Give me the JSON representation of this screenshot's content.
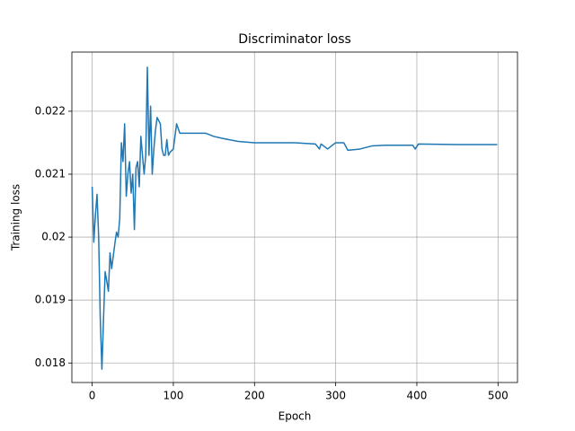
{
  "chart_data": {
    "type": "line",
    "title": "Discriminator loss",
    "x_label": "Epoch",
    "y_label": "Training loss",
    "color": "#1f77b4",
    "grid": true,
    "xlim": [
      -25,
      524
    ],
    "ylim": [
      0.01769,
      0.02294
    ],
    "xticks": [
      0,
      100,
      200,
      300,
      400,
      500
    ],
    "yticks": [
      0.018,
      0.019,
      0.02,
      0.021,
      0.022
    ],
    "x": [
      0,
      2,
      4,
      6,
      8,
      10,
      12,
      14,
      16,
      18,
      20,
      22,
      24,
      26,
      28,
      30,
      32,
      34,
      36,
      38,
      40,
      42,
      44,
      46,
      48,
      50,
      52,
      54,
      56,
      58,
      60,
      62,
      64,
      66,
      68,
      70,
      72,
      74,
      76,
      78,
      80,
      82,
      84,
      86,
      88,
      90,
      92,
      94,
      96,
      100,
      104,
      108,
      120,
      140,
      150,
      160,
      180,
      200,
      220,
      250,
      275,
      280,
      282,
      290,
      300,
      310,
      315,
      330,
      345,
      360,
      395,
      398,
      402,
      450,
      499
    ],
    "values": [
      0.0208,
      0.01992,
      0.02035,
      0.02068,
      0.02,
      0.0187,
      0.0179,
      0.0187,
      0.01945,
      0.0193,
      0.01914,
      0.01975,
      0.0195,
      0.0197,
      0.0199,
      0.02008,
      0.02,
      0.0203,
      0.0215,
      0.0212,
      0.0218,
      0.02065,
      0.021,
      0.0212,
      0.0207,
      0.021,
      0.02012,
      0.0211,
      0.0212,
      0.0208,
      0.0216,
      0.0213,
      0.021,
      0.0213,
      0.0227,
      0.0213,
      0.02208,
      0.021,
      0.0214,
      0.0217,
      0.0219,
      0.02185,
      0.0218,
      0.0214,
      0.0213,
      0.0213,
      0.02155,
      0.0213,
      0.02135,
      0.0214,
      0.0218,
      0.02165,
      0.02165,
      0.02165,
      0.0216,
      0.02157,
      0.02152,
      0.0215,
      0.0215,
      0.0215,
      0.02148,
      0.0214,
      0.02148,
      0.0214,
      0.0215,
      0.0215,
      0.02138,
      0.0214,
      0.02145,
      0.02146,
      0.02146,
      0.0214,
      0.02148,
      0.02147,
      0.02147
    ]
  }
}
